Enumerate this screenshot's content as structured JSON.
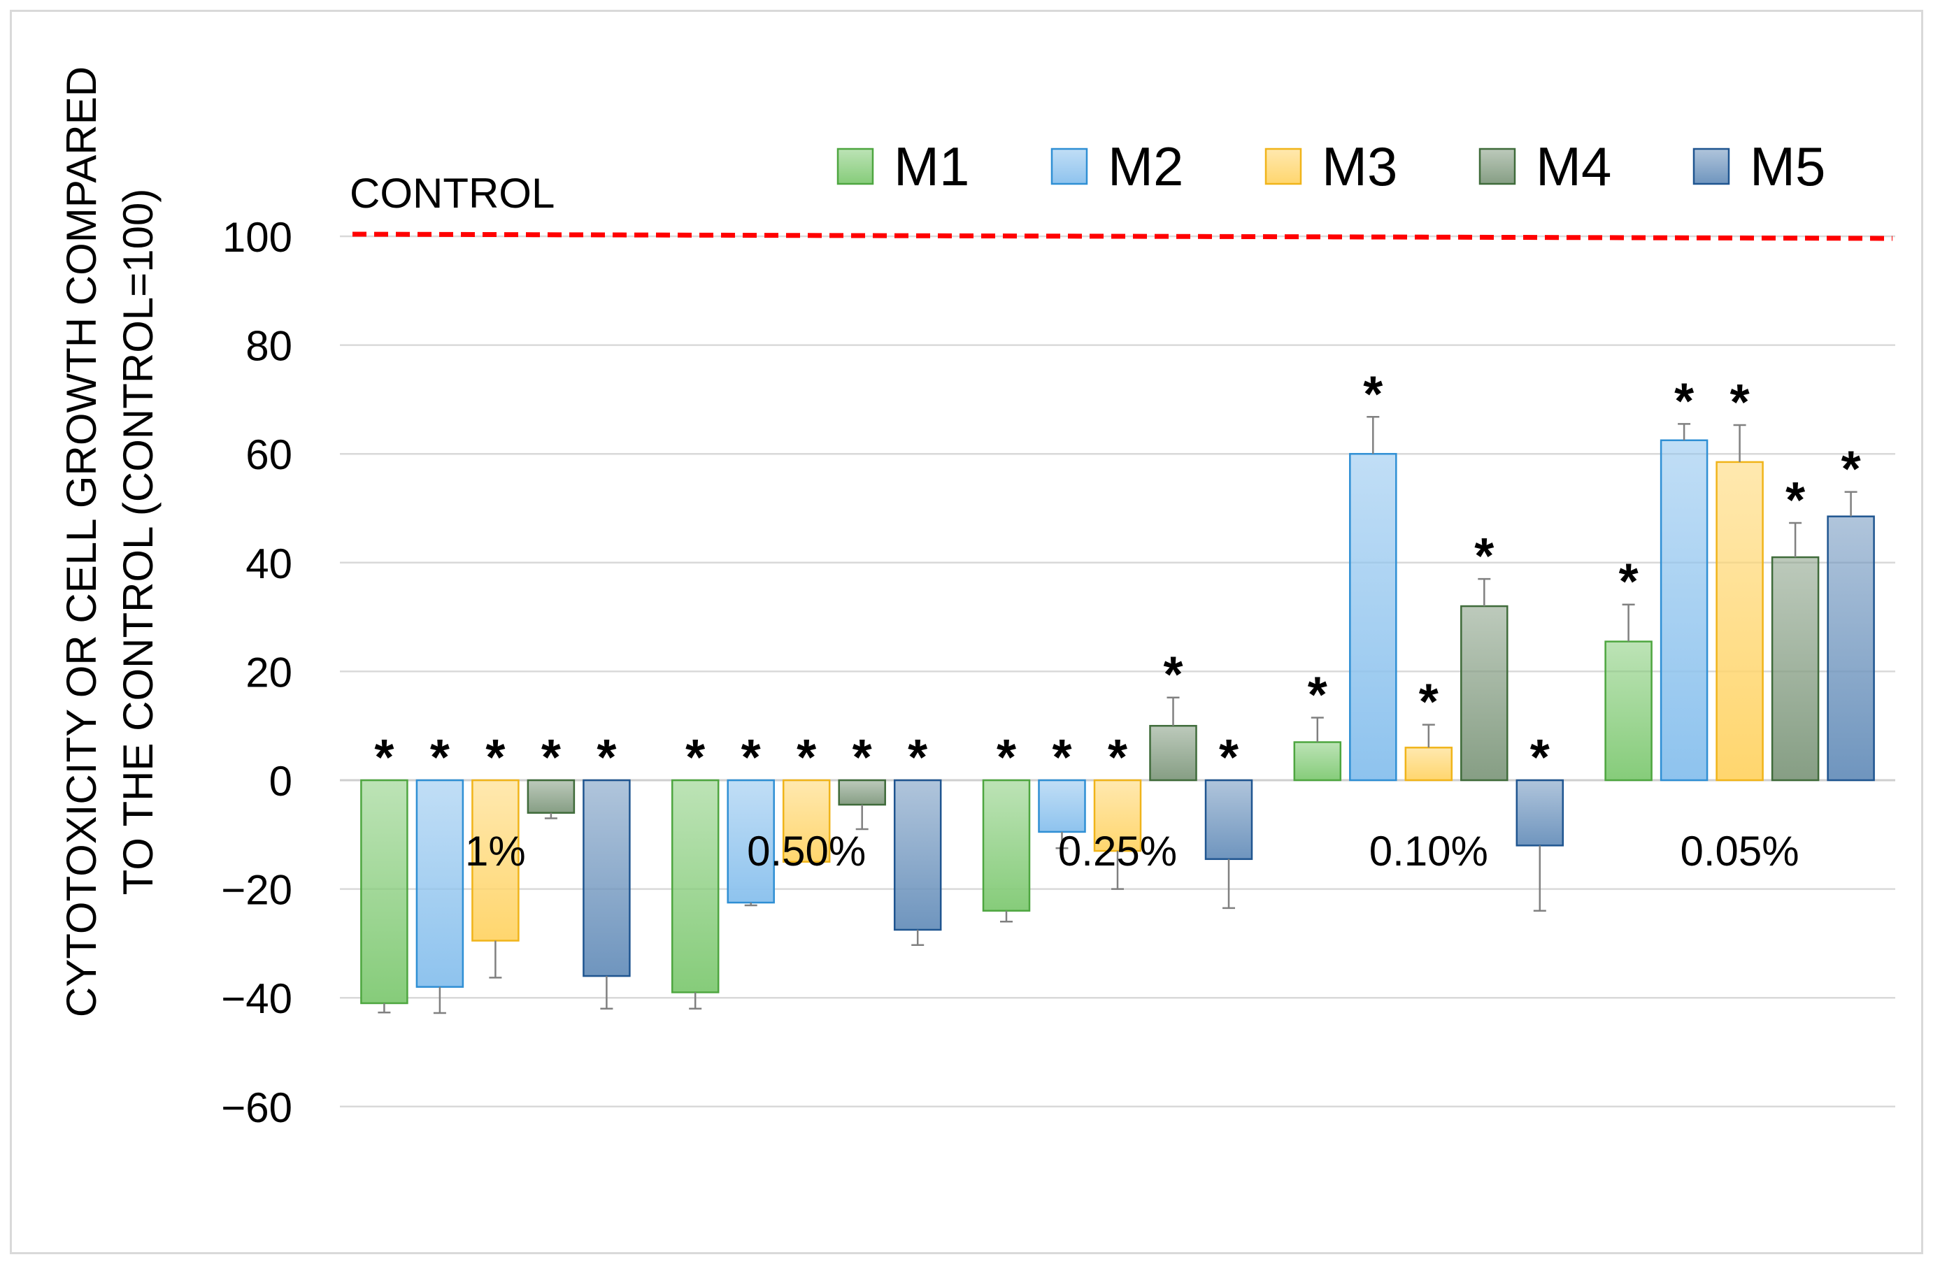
{
  "chart_data": {
    "type": "bar",
    "title": "",
    "xlabel": "",
    "ylabel_line1": "CYTOTOXICITY OR CELL GROWTH COMPARED",
    "ylabel_line2": "TO THE CONTROL (CONTROL=100)",
    "ylim": [
      -60,
      100
    ],
    "yticks": [
      100,
      80,
      60,
      40,
      20,
      0,
      -20,
      -40,
      -60
    ],
    "ytick_labels": [
      "100",
      "80",
      "60",
      "40",
      "20",
      "0",
      "−20",
      "−40",
      "−60"
    ],
    "grid": true,
    "legend_position": "top-right",
    "categories": [
      "1%",
      "0.50%",
      "0.25%",
      "0.10%",
      "0.05%"
    ],
    "series": [
      {
        "name": "M1",
        "color": "#86cc7a",
        "edge": "#4ea640",
        "values": [
          -41,
          -39,
          -24,
          7,
          25.5
        ],
        "errors": [
          1.7,
          3.0,
          2.0,
          4.5,
          6.8
        ]
      },
      {
        "name": "M2",
        "color": "#8ec3ee",
        "edge": "#2f8fd4",
        "values": [
          -38,
          -22.5,
          -9.5,
          60,
          62.5
        ],
        "errors": [
          4.8,
          0.5,
          3.0,
          6.8,
          3.0
        ]
      },
      {
        "name": "M3",
        "color": "#ffd66e",
        "edge": "#f0b41a",
        "values": [
          -29.5,
          -15,
          -13,
          6,
          58.5
        ],
        "errors": [
          6.8,
          0,
          7.0,
          4.2,
          6.8
        ]
      },
      {
        "name": "M4",
        "color": "#869e84",
        "edge": "#3f6b3a",
        "values": [
          -6,
          -4.5,
          10,
          32,
          41
        ],
        "errors": [
          1.0,
          4.5,
          5.2,
          5.0,
          6.3
        ]
      },
      {
        "name": "M5",
        "color": "#6f95be",
        "edge": "#1f5590",
        "values": [
          -36,
          -27.5,
          -14.5,
          -12,
          48.5
        ],
        "errors": [
          6.0,
          2.8,
          9.0,
          12.0,
          4.5
        ]
      }
    ],
    "significance_marker": "*",
    "control_line": {
      "label": "CONTROL",
      "value": 100,
      "color": "#ff0000"
    }
  }
}
